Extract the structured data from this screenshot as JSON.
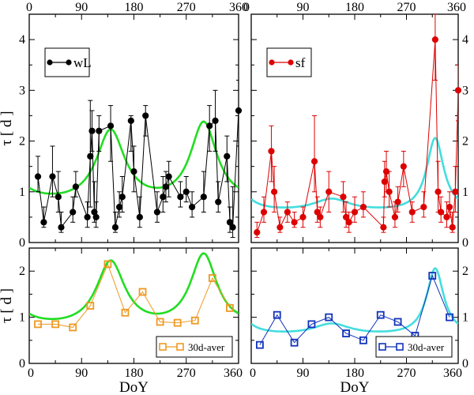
{
  "chart_data": [
    {
      "id": "top-left",
      "type": "scatter",
      "xlim": [
        0,
        360
      ],
      "ylim": [
        0,
        4.5
      ],
      "xticks": [
        0,
        90,
        180,
        270,
        360
      ],
      "yticks": [
        0,
        1,
        2,
        3,
        4
      ],
      "xtick_labels_top": true,
      "ylabel": "τ [ d ]",
      "series": [
        {
          "name": "wL",
          "color": "#000000",
          "marker": "circle-filled",
          "connected": true,
          "x": [
            15,
            25,
            40,
            50,
            55,
            75,
            80,
            100,
            105,
            108,
            112,
            115,
            120,
            140,
            148,
            155,
            160,
            175,
            180,
            190,
            200,
            220,
            230,
            235,
            240,
            260,
            270,
            280,
            300,
            310,
            320,
            325,
            340,
            345,
            350,
            360
          ],
          "y": [
            1.3,
            0.4,
            1.3,
            0.9,
            0.3,
            0.6,
            1.1,
            0.5,
            1.7,
            2.2,
            0.6,
            0.5,
            2.2,
            2.3,
            0.3,
            0.7,
            0.9,
            2.4,
            1.4,
            0.5,
            2.5,
            0.6,
            0.9,
            1.1,
            1.3,
            0.9,
            1.0,
            0.7,
            0.9,
            2.3,
            2.4,
            0.8,
            1.7,
            0.4,
            0.3,
            2.6
          ],
          "y_upper": [
            1.7,
            0.7,
            1.9,
            1.4,
            0.6,
            0.9,
            1.4,
            0.8,
            2.8,
            2.6,
            1.2,
            0.8,
            2.5,
            2.7,
            0.6,
            1.0,
            1.3,
            2.5,
            1.9,
            0.9,
            2.7,
            1.0,
            1.3,
            1.4,
            1.6,
            1.2,
            1.3,
            1.0,
            1.4,
            2.7,
            3.0,
            1.2,
            2.1,
            0.7,
            1.1,
            3.2
          ],
          "y_lower": [
            1.0,
            0.3,
            0.9,
            0.6,
            0.2,
            0.4,
            0.9,
            0.3,
            0.7,
            1.8,
            0.4,
            0.3,
            1.8,
            1.6,
            0.2,
            0.5,
            0.6,
            1.8,
            1.0,
            0.3,
            2.1,
            0.4,
            0.6,
            0.8,
            0.9,
            0.7,
            0.8,
            0.5,
            0.6,
            1.8,
            1.8,
            0.6,
            1.2,
            0.2,
            0.1,
            1.9
          ]
        }
      ],
      "model": {
        "color": "#22dd22",
        "peaks": [
          [
            140,
            1.45,
            30
          ],
          [
            300,
            1.6,
            28
          ]
        ],
        "base": 0.68
      },
      "legend": {
        "label": "wL",
        "position": "top-left"
      }
    },
    {
      "id": "top-right",
      "type": "scatter",
      "xlim": [
        0,
        360
      ],
      "ylim": [
        0,
        4.5
      ],
      "xticks": [
        0,
        90,
        180,
        270,
        360
      ],
      "yticks": [
        0,
        1,
        2,
        3,
        4
      ],
      "xtick_labels_top": true,
      "ytick_labels_right": true,
      "series": [
        {
          "name": "sf",
          "color": "#dd0000",
          "marker": "circle-filled",
          "connected": true,
          "x": [
            10,
            22,
            35,
            40,
            50,
            63,
            75,
            90,
            110,
            115,
            120,
            135,
            160,
            165,
            170,
            180,
            195,
            230,
            232,
            235,
            240,
            250,
            255,
            265,
            280,
            300,
            320,
            325,
            330,
            340,
            345,
            350,
            355,
            360
          ],
          "y": [
            0.2,
            0.6,
            1.8,
            1.0,
            0.3,
            0.6,
            0.4,
            0.5,
            1.6,
            0.6,
            0.5,
            1.0,
            0.9,
            0.5,
            0.4,
            0.6,
            0.7,
            0.3,
            1.2,
            1.4,
            1.0,
            0.5,
            0.8,
            1.5,
            0.6,
            0.7,
            4.0,
            1.0,
            0.6,
            0.5,
            0.7,
            0.3,
            1.0,
            3.0
          ],
          "y_upper": [
            0.4,
            0.9,
            2.3,
            1.5,
            0.5,
            0.8,
            0.6,
            0.7,
            2.5,
            0.9,
            0.7,
            1.4,
            1.2,
            0.8,
            0.6,
            0.9,
            1.0,
            0.5,
            1.6,
            1.8,
            1.4,
            0.8,
            1.1,
            1.8,
            0.8,
            1.0,
            4.5,
            1.6,
            0.9,
            0.8,
            1.0,
            0.6,
            1.5,
            3.5
          ],
          "y_lower": [
            0.1,
            0.4,
            1.2,
            0.6,
            0.2,
            0.4,
            0.3,
            0.3,
            1.0,
            0.4,
            0.3,
            0.6,
            0.6,
            0.3,
            0.2,
            0.4,
            0.5,
            0.2,
            0.9,
            1.0,
            0.7,
            0.3,
            0.6,
            1.1,
            0.4,
            0.5,
            3.2,
            0.6,
            0.4,
            0.3,
            0.5,
            0.2,
            0.6,
            2.4
          ]
        }
      ],
      "model": {
        "color": "#44dddd",
        "peaks": [
          [
            140,
            0.25,
            40
          ],
          [
            320,
            1.45,
            18
          ]
        ],
        "base": 0.58
      },
      "legend": {
        "label": "sf",
        "position": "top-left"
      }
    },
    {
      "id": "bottom-left",
      "type": "line",
      "xlim": [
        0,
        360
      ],
      "ylim": [
        0,
        2.5
      ],
      "xticks": [
        0,
        90,
        180,
        270,
        360
      ],
      "yticks": [
        0,
        1,
        2
      ],
      "xlabel": "DoY",
      "ylabel": "τ [ d ]",
      "series": [
        {
          "name": "30d-aver",
          "color": "#ee9922",
          "marker": "square-open",
          "connected": true,
          "x": [
            15,
            45,
            75,
            105,
            135,
            165,
            195,
            225,
            255,
            285,
            315,
            345
          ],
          "y": [
            0.85,
            0.85,
            0.78,
            1.25,
            2.15,
            1.1,
            1.55,
            0.9,
            0.88,
            0.93,
            1.85,
            1.2
          ]
        }
      ],
      "model": {
        "color": "#22dd22",
        "peaks": [
          [
            140,
            1.45,
            30
          ],
          [
            300,
            1.6,
            28
          ]
        ],
        "base": 0.68
      },
      "legend": {
        "label": "30d-aver",
        "position": "bottom-right"
      }
    },
    {
      "id": "bottom-right",
      "type": "line",
      "xlim": [
        0,
        360
      ],
      "ylim": [
        0,
        2.5
      ],
      "xticks": [
        0,
        90,
        180,
        270,
        360
      ],
      "yticks": [
        0,
        1,
        2
      ],
      "xlabel": "DoY",
      "ytick_labels_right": true,
      "series": [
        {
          "name": "30d-aver",
          "color": "#1133bb",
          "marker": "square-open",
          "connected": true,
          "x": [
            15,
            45,
            75,
            105,
            135,
            165,
            195,
            225,
            255,
            285,
            315,
            345
          ],
          "y": [
            0.4,
            1.05,
            0.45,
            0.85,
            1.0,
            0.65,
            0.5,
            1.05,
            0.9,
            0.6,
            1.9,
            1.0
          ]
        }
      ],
      "model": {
        "color": "#44dddd",
        "peaks": [
          [
            140,
            0.25,
            40
          ],
          [
            320,
            1.45,
            18
          ]
        ],
        "base": 0.58
      },
      "legend": {
        "label": "30d-aver",
        "position": "bottom-right"
      }
    }
  ]
}
